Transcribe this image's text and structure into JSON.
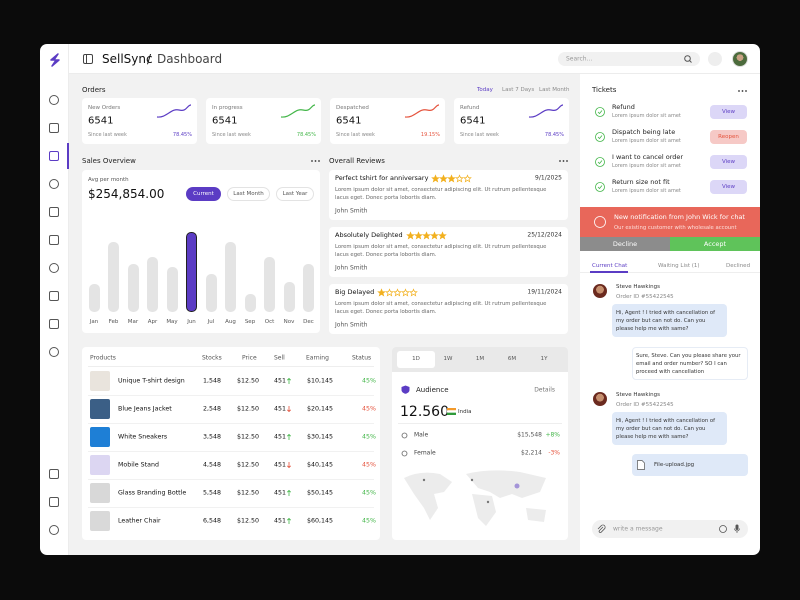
{
  "header": {
    "brand": "SellSync",
    "separator": "/",
    "page": "Dashboard",
    "search": "Search..."
  },
  "orders": {
    "title": "Orders",
    "filters": [
      "Today",
      "Last 7 Days",
      "Last Month"
    ],
    "cards": [
      {
        "label": "New Orders",
        "value": "6541",
        "note": "Since last week",
        "change": "78.45%",
        "color": "#5b3cc4"
      },
      {
        "label": "In progress",
        "value": "6541",
        "note": "Since last week",
        "change": "78.45%",
        "color": "#43b649"
      },
      {
        "label": "Despatched",
        "value": "6541",
        "note": "Since last week",
        "change": "19.15%",
        "color": "#e5533d"
      },
      {
        "label": "Refund",
        "value": "6541",
        "note": "Since last week",
        "change": "78.45%",
        "color": "#5b3cc4"
      }
    ]
  },
  "sales_overview": {
    "title": "Sales Overview",
    "avg_label": "Avg per month",
    "amount": "$254,854.00",
    "tabs": [
      "Current",
      "Last Month",
      "Last Year"
    ],
    "months": [
      "Jan",
      "Feb",
      "Mar",
      "Apr",
      "May",
      "Jun",
      "Jul",
      "Aug",
      "Sep",
      "Oct",
      "Nov",
      "Dec"
    ],
    "values": [
      28,
      70,
      48,
      55,
      45,
      80,
      38,
      70,
      18,
      55,
      30,
      48
    ],
    "color": "#e4e4e4",
    "highlight": "Jun",
    "highlight_color": "#5b3cc4"
  },
  "reviews": {
    "title": "Overall Reviews",
    "items": [
      {
        "title": "Perfect tshirt for anniversary",
        "rating": 3,
        "date": "9/1/2025",
        "text": "Lorem ipsum dolor sit amet, consectetur adipiscing elit. Ut rutrum pellentesque lacus eget. Donec porta lobortis diam.",
        "author": "John Smith"
      },
      {
        "title": "Absolutely Delighted",
        "rating": 5,
        "date": "25/12/2024",
        "text": "Lorem ipsum dolor sit amet, consectetur adipiscing elit. Ut rutrum pellentesque lacus eget. Donec porta lobortis diam.",
        "author": "John Smith"
      },
      {
        "title": "Big Delayed",
        "rating": 1,
        "date": "19/11/2024",
        "text": "Lorem ipsum dolor sit amet, consectetur adipiscing elit. Ut rutrum pellentesque lacus eget. Donec porta lobortis diam.",
        "author": "John Smith"
      }
    ]
  },
  "products": {
    "columns": [
      "Products",
      "Stocks",
      "Price",
      "Sell",
      "Earning",
      "Status"
    ],
    "rows": [
      {
        "name": "Unique T-shirt design",
        "stock": "1,548",
        "price": "$12.50",
        "sell": "451",
        "trend": "up",
        "earning": "$10,145",
        "status": "45%"
      },
      {
        "name": "Blue Jeans Jacket",
        "stock": "2,548",
        "price": "$12.50",
        "sell": "451",
        "trend": "down",
        "earning": "$20,145",
        "status": "45%"
      },
      {
        "name": "White Sneakers",
        "stock": "3,548",
        "price": "$12.50",
        "sell": "451",
        "trend": "up",
        "earning": "$30,145",
        "status": "45%"
      },
      {
        "name": "Mobile Stand",
        "stock": "4,548",
        "price": "$12.50",
        "sell": "451",
        "trend": "down",
        "earning": "$40,145",
        "status": "45%"
      },
      {
        "name": "Glass Branding Bottle",
        "stock": "5,548",
        "price": "$12.50",
        "sell": "451",
        "trend": "up",
        "earning": "$50,145",
        "status": "45%"
      },
      {
        "name": "Leather Chair",
        "stock": "6,548",
        "price": "$12.50",
        "sell": "451",
        "trend": "up",
        "earning": "$60,145",
        "status": "45%"
      }
    ]
  },
  "audience": {
    "tabs": [
      "1D",
      "1W",
      "1M",
      "6M",
      "1Y"
    ],
    "title": "Audience",
    "link": "Details",
    "total": "12.560",
    "country": "India",
    "rows": [
      {
        "label": "Male",
        "amount": "$15,548",
        "change": "+8%",
        "trend": "up"
      },
      {
        "label": "Female",
        "amount": "$2,214",
        "change": "-3%",
        "trend": "down"
      }
    ]
  },
  "tickets": {
    "title": "Tickets",
    "items": [
      {
        "title": "Refund",
        "text": "Lorem ipsum dolor sit amet",
        "action": "View"
      },
      {
        "title": "Dispatch being late",
        "text": "Lorem ipsum dolor sit amet",
        "action": "Reopen"
      },
      {
        "title": "I want to cancel order",
        "text": "Lorem ipsum dolor sit amet",
        "action": "View"
      },
      {
        "title": "Return size not fit",
        "text": "Lorem ipsum dolor sit amet",
        "action": "View"
      }
    ]
  },
  "notification": {
    "title": "New notification from John Wick for chat",
    "text": "Our existing customer with wholesale account",
    "decline": "Decline",
    "accept": "Accept"
  },
  "chat": {
    "tabs": [
      "Current Chat",
      "Waiting List (1)",
      "Declined"
    ],
    "messages": [
      {
        "name": "Steve Hawkings",
        "order": "Order ID #55422545",
        "text": "Hi, Agent ! I tried with cancellation of my order but can not do. Can you please help me with same?"
      },
      {
        "reply": "Sure, Steve. Can you please share your email and order number? SO I can proceed with cancellation"
      },
      {
        "name": "Steve Hawkings",
        "order": "Order ID #55422545",
        "text": "Hi, Agent ! I tried with cancellation of my order but can not do. Can you please help me with same?",
        "file": "File-upload.jpg"
      }
    ],
    "input": "write a message"
  }
}
